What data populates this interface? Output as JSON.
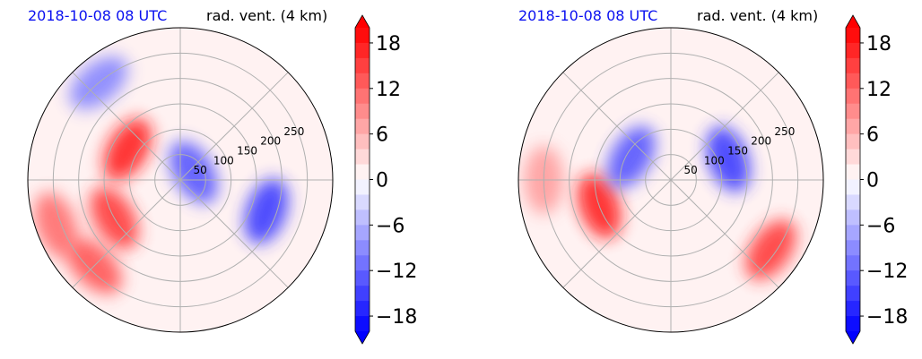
{
  "chart_data": [
    {
      "type": "heatmap",
      "projection": "polar",
      "time_label": "2018-10-08 08 UTC",
      "variable_label": "rad. vent. (4 km)",
      "range_rings": [
        50,
        100,
        150,
        200,
        250
      ],
      "range_labels": [
        "50",
        "100",
        "150",
        "200",
        "250"
      ],
      "max_range": 300,
      "angular_grid_step_deg": 45,
      "colorbar": {
        "min": -20,
        "max": 20,
        "step": 2,
        "ticks": [
          18,
          12,
          6,
          0,
          -6,
          -12,
          -18
        ],
        "tick_labels": [
          "18",
          "12",
          "6",
          "0",
          "−6",
          "−12",
          "−18"
        ],
        "cmap": "bwr",
        "extend": "both"
      },
      "features": [
        {
          "sign": "positive",
          "value": 18,
          "azimuth_deg": 300,
          "range_km": 120
        },
        {
          "sign": "positive",
          "value": 16,
          "azimuth_deg": 240,
          "range_km": 150
        },
        {
          "sign": "positive",
          "value": 14,
          "azimuth_deg": 225,
          "range_km": 240
        },
        {
          "sign": "positive",
          "value": 12,
          "azimuth_deg": 250,
          "range_km": 260
        },
        {
          "sign": "negative",
          "value": -10,
          "azimuth_deg": 320,
          "range_km": 250
        },
        {
          "sign": "negative",
          "value": -14,
          "azimuth_deg": 60,
          "range_km": 30
        },
        {
          "sign": "negative",
          "value": -16,
          "azimuth_deg": 110,
          "range_km": 180
        }
      ]
    },
    {
      "type": "heatmap",
      "projection": "polar",
      "time_label": "2018-10-08 08 UTC",
      "variable_label": "rad. vent. (4 km)",
      "range_rings": [
        50,
        100,
        150,
        200,
        250
      ],
      "range_labels": [
        "50",
        "100",
        "150",
        "200",
        "250"
      ],
      "max_range": 300,
      "angular_grid_step_deg": 45,
      "colorbar": {
        "min": -20,
        "max": 20,
        "step": 2,
        "ticks": [
          18,
          12,
          6,
          0,
          -6,
          -12,
          -18
        ],
        "tick_labels": [
          "18",
          "12",
          "6",
          "0",
          "−6",
          "−12",
          "−18"
        ],
        "cmap": "bwr",
        "extend": "both"
      },
      "features": [
        {
          "sign": "positive",
          "value": 18,
          "azimuth_deg": 250,
          "range_km": 150
        },
        {
          "sign": "positive",
          "value": 8,
          "azimuth_deg": 270,
          "range_km": 250
        },
        {
          "sign": "positive",
          "value": 16,
          "azimuth_deg": 125,
          "range_km": 240
        },
        {
          "sign": "negative",
          "value": -16,
          "azimuth_deg": 70,
          "range_km": 120
        },
        {
          "sign": "negative",
          "value": -14,
          "azimuth_deg": 300,
          "range_km": 90
        }
      ]
    }
  ]
}
